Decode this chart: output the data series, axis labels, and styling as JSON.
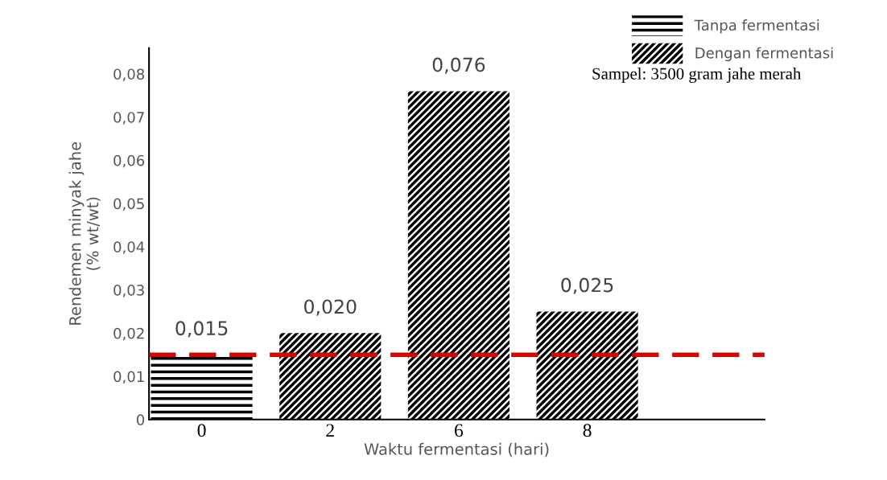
{
  "chart_data": {
    "type": "bar",
    "categories": [
      "0",
      "2",
      "6",
      "8",
      null
    ],
    "xlabel": "Waktu fermentasi (hari)",
    "ylabel": "Rendemen minyak jahe\n(% wt/wt)",
    "ylim": [
      0,
      0.086
    ],
    "yticks": [
      {
        "value": 0,
        "label": "0"
      },
      {
        "value": 0.01,
        "label": "0,01"
      },
      {
        "value": 0.02,
        "label": "0,02"
      },
      {
        "value": 0.03,
        "label": "0,03"
      },
      {
        "value": 0.04,
        "label": "0,04"
      },
      {
        "value": 0.05,
        "label": "0,05"
      },
      {
        "value": 0.06,
        "label": "0,06"
      },
      {
        "value": 0.07,
        "label": "0,07"
      },
      {
        "value": 0.08,
        "label": "0,08"
      }
    ],
    "series": [
      {
        "name": "Tanpa fermentasi",
        "color": "#000000",
        "values": [
          0.015,
          null,
          null,
          null,
          null
        ],
        "value_labels": [
          "0,015",
          null,
          null,
          null,
          null
        ]
      },
      {
        "name": "Dengan fermentasi",
        "color": "#000000",
        "values": [
          null,
          0.02,
          0.076,
          0.025,
          null
        ],
        "value_labels": [
          null,
          "0,020",
          "0,076",
          "0,025",
          null
        ]
      }
    ],
    "ref_lines": [
      {
        "axis": "y",
        "value": 0.015,
        "color": "#e00000",
        "line_style": "dashed"
      }
    ],
    "annotations": [
      "Sampel: 3500 gram jahe merah"
    ],
    "legend": "top right",
    "grid": false
  }
}
